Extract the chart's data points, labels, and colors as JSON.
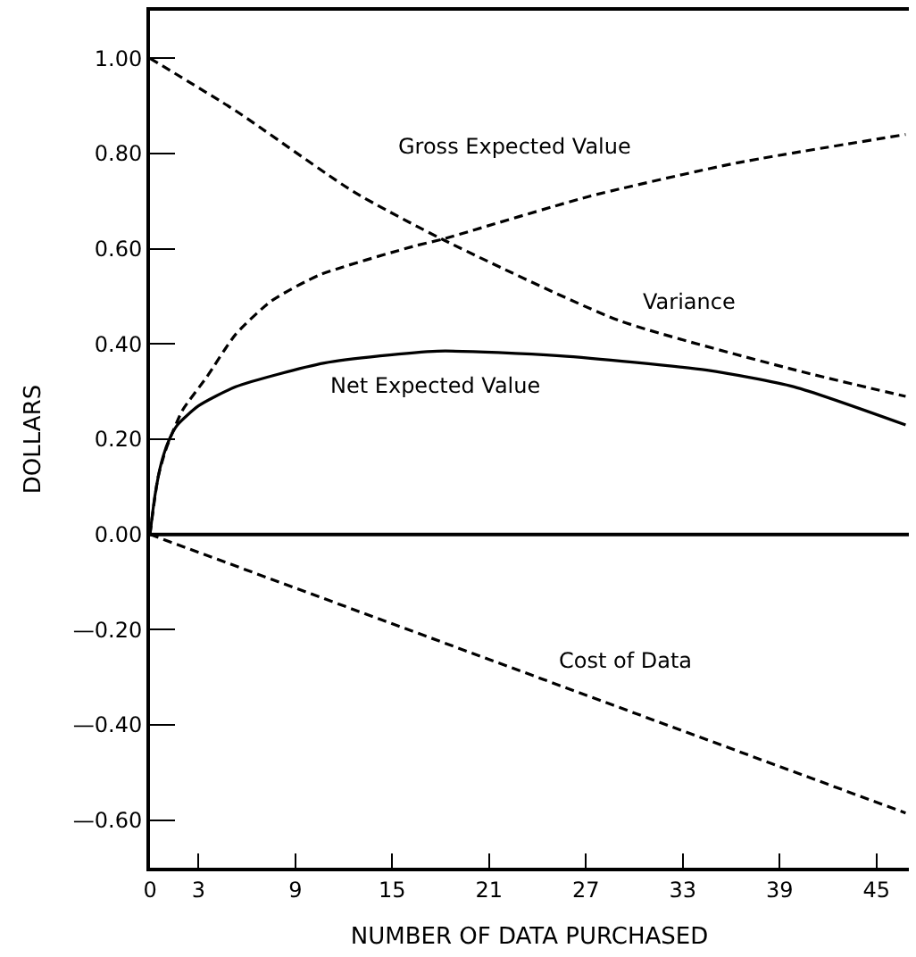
{
  "chart_data": {
    "type": "line",
    "xlabel": "NUMBER OF DATA PURCHASED",
    "ylabel": "DOLLARS",
    "xlim": [
      0,
      47
    ],
    "ylim": [
      -0.7,
      1.1
    ],
    "xticks": [
      0,
      3,
      9,
      15,
      21,
      27,
      33,
      39,
      45
    ],
    "yticks": [
      {
        "value": -0.6,
        "label": "—0.60"
      },
      {
        "value": -0.4,
        "label": "—0.40"
      },
      {
        "value": -0.2,
        "label": "—0.20"
      },
      {
        "value": 0,
        "label": "0.00"
      },
      {
        "value": 0.2,
        "label": "0.20"
      },
      {
        "value": 0.4,
        "label": "0.40"
      },
      {
        "value": 0.6,
        "label": "0.60"
      },
      {
        "value": 0.8,
        "label": "0.80"
      },
      {
        "value": 1.0,
        "label": "1.00"
      }
    ],
    "legend": false,
    "marker": "none",
    "series": [
      {
        "name": "Gross Expected Value",
        "color": "#000000",
        "line_style": "dashed",
        "x": [
          0,
          0.5,
          1,
          2,
          3.5,
          5.3,
          7.5,
          10.5,
          16.3,
          18.1,
          27.2,
          36.3,
          46.8
        ],
        "values": [
          0,
          0.12,
          0.18,
          0.26,
          0.33,
          0.42,
          0.49,
          0.545,
          0.605,
          0.62,
          0.71,
          0.78,
          0.84
        ]
      },
      {
        "name": "Variance",
        "color": "#000000",
        "line_style": "dashed",
        "x": [
          0,
          5.3,
          12.6,
          18.1,
          29,
          40,
          46.8
        ],
        "values": [
          1.0,
          0.89,
          0.72,
          0.62,
          0.45,
          0.345,
          0.29
        ]
      },
      {
        "name": "Net Expected Value",
        "color": "#000000",
        "line_style": "solid",
        "x": [
          0,
          0.3,
          0.7,
          1.2,
          1.7,
          3,
          5.3,
          10.8,
          17.8,
          25.4,
          34.5,
          39.9,
          46.8
        ],
        "values": [
          0,
          0.08,
          0.15,
          0.2,
          0.23,
          0.27,
          0.31,
          0.36,
          0.385,
          0.375,
          0.345,
          0.31,
          0.23
        ]
      },
      {
        "name": "Cost of Data",
        "color": "#000000",
        "line_style": "dashed",
        "x": [
          0,
          46.8
        ],
        "values": [
          0,
          -0.585
        ]
      }
    ],
    "ref_lines": [
      {
        "axis": "y",
        "value": 0,
        "color": "#000000",
        "line_style": "solid"
      }
    ]
  }
}
